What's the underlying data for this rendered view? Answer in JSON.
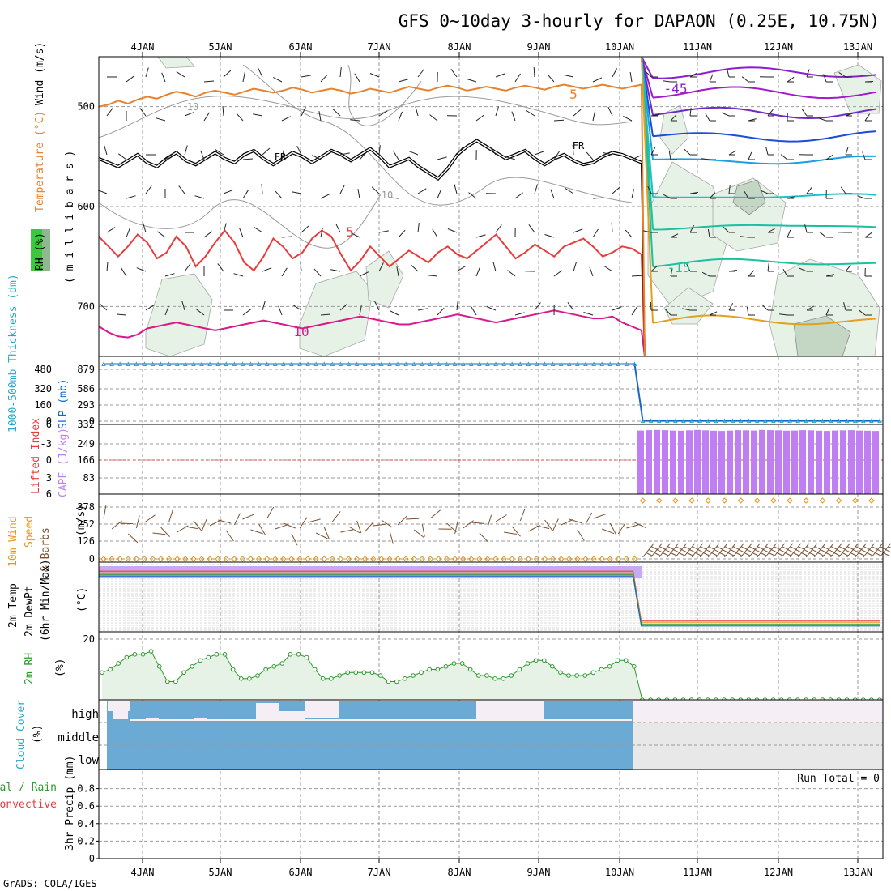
{
  "title": "GFS 0~10day 3-hourly for DAPAON (0.25E, 10.75N)",
  "footer": "GrADS: COLA/IGES",
  "dates": [
    "4JAN",
    "5JAN",
    "6JAN",
    "7JAN",
    "8JAN",
    "9JAN",
    "10JAN",
    "11JAN",
    "12JAN",
    "13JAN"
  ],
  "colors": {
    "grid": "#9a9a9a",
    "rh_fill": "#e6f2e6",
    "rh_fill_dark": "#c4d6c4",
    "t10": "#d9188c",
    "t5": "#e83c3c",
    "tm5": "#e8822c",
    "thick": "#28a8c8",
    "slp": "#1866c8",
    "cape": "#bf7ff2",
    "wind10": "#e6961e",
    "barb": "#7a5030",
    "rh2m": "#2a9a2a",
    "cloud": "#6aaad4",
    "cloud_high": "#f5eef5",
    "cloud_gray": "#e8e8e8",
    "precip_total": "#2a9a2a",
    "precip_conv": "#e83c3c"
  },
  "chart_data": [
    {
      "panel": "upper-air",
      "type": "area",
      "ylabel_parts": [
        "RH (%)",
        "Temperature (°C)",
        "Wind (m/s)"
      ],
      "ylabel_units": "( m i l l i b a r s )",
      "yticks": [
        "500",
        "600",
        "700"
      ],
      "ylim": [
        450,
        750
      ],
      "contour_labels": [
        {
          "text": "5",
          "value": 5
        },
        {
          "text": "FR",
          "value": 0
        },
        {
          "text": "5",
          "value": 5
        },
        {
          "text": "10",
          "value": 10
        },
        {
          "text": "10",
          "value": 10
        },
        {
          "text": "10",
          "value": 10
        },
        {
          "text": "FR",
          "value": 0
        },
        {
          "text": "-45",
          "value": -45
        },
        {
          "text": "-15",
          "value": -15
        }
      ],
      "series": [
        {
          "name": "10",
          "values": [
            720,
            726,
            730,
            731,
            728,
            722,
            720,
            718,
            716,
            718,
            720,
            722,
            724,
            722,
            720,
            718,
            716,
            714,
            716,
            718,
            720,
            722,
            720,
            718,
            716,
            714,
            712,
            710,
            712,
            714,
            716,
            718,
            718,
            716,
            714,
            712,
            710,
            708,
            710,
            712,
            714,
            716,
            714,
            712,
            710,
            708,
            706,
            704,
            706,
            708,
            710,
            712,
            712,
            710,
            716,
            720,
            724
          ]
        },
        {
          "name": "5",
          "values": [
            630,
            640,
            650,
            640,
            628,
            636,
            652,
            646,
            630,
            640,
            660,
            650,
            636,
            624,
            636,
            656,
            664,
            650,
            632,
            640,
            652,
            646,
            632,
            624,
            630,
            648,
            664,
            654,
            640,
            650,
            660,
            652,
            644,
            650,
            656,
            646,
            640,
            648,
            652,
            644,
            636,
            628,
            640,
            652,
            646,
            638,
            644,
            650,
            640,
            636,
            632,
            640,
            650,
            646,
            640,
            642,
            648
          ]
        },
        {
          "name": "FR",
          "values": [
            552,
            556,
            560,
            554,
            548,
            556,
            560,
            552,
            546,
            554,
            558,
            552,
            546,
            552,
            556,
            548,
            544,
            552,
            558,
            552,
            546,
            550,
            556,
            550,
            544,
            548,
            554,
            548,
            542,
            550,
            560,
            556,
            552,
            560,
            566,
            572,
            562,
            548,
            540,
            534,
            540,
            546,
            552,
            548,
            544,
            552,
            558,
            552,
            548,
            554,
            558,
            556,
            550,
            546,
            548,
            552,
            556
          ]
        },
        {
          "name": "-5",
          "values": [
            500,
            498,
            494,
            497,
            493,
            490,
            492,
            488,
            485,
            487,
            490,
            486,
            484,
            486,
            488,
            485,
            482,
            484,
            486,
            484,
            481,
            483,
            486,
            484,
            482,
            484,
            487,
            485,
            482,
            484,
            486,
            483,
            480,
            482,
            484,
            481,
            479,
            481,
            484,
            482,
            480,
            482,
            484,
            481,
            479,
            481,
            483,
            480,
            478,
            480,
            482,
            480,
            478,
            480,
            482,
            480,
            478
          ]
        }
      ],
      "after_break_levels": [
        {
          "value": -45,
          "p": 466
        },
        {
          "value": -40,
          "p": 486
        },
        {
          "value": -35,
          "p": 506
        },
        {
          "value": -30,
          "p": 530
        },
        {
          "value": -25,
          "p": 554
        },
        {
          "value": -20,
          "p": 590
        },
        {
          "value": -15,
          "p": 620
        },
        {
          "value": -15,
          "p": 656
        },
        {
          "value": -10,
          "p": 714
        }
      ]
    },
    {
      "panel": "thickness-slp",
      "type": "line",
      "ylabel_left": "1000-500mb Thickness (dm)",
      "ylabel_right": "SLP (mb)",
      "yticks_left": [
        "480",
        "320",
        "160",
        "0"
      ],
      "yticks_right": [
        "879",
        "586",
        "293",
        "0"
      ],
      "ylim": [
        0,
        1050
      ],
      "series": [
        {
          "name": "SLP (mb)",
          "values": [
            1000,
            1000,
            1000,
            1000,
            1000,
            1000,
            1000,
            1000,
            1000,
            1000,
            1000,
            1000,
            1000,
            1000,
            1000,
            1000,
            1000,
            1000,
            1000,
            1000,
            1000,
            1000,
            1000,
            1000,
            1000,
            1000,
            1000,
            1000,
            1000,
            1000,
            1000,
            1000,
            1000,
            1000,
            1000,
            1000,
            1000,
            1000,
            1000,
            1000,
            1000,
            1000,
            1000,
            1000,
            1000,
            1000,
            1000,
            1000,
            1000,
            1000,
            1000,
            1000,
            1000,
            1000,
            1000,
            1000,
            1000,
            1000,
            1000,
            1000,
            1000,
            1000,
            1000,
            1000,
            1000,
            1000,
            5,
            5,
            5,
            5,
            5,
            5,
            5,
            5,
            5,
            5,
            5,
            5,
            5,
            5,
            5,
            5,
            5,
            5,
            5,
            5,
            5,
            5,
            5,
            5,
            5,
            5,
            5,
            5,
            5,
            5
          ]
        }
      ]
    },
    {
      "panel": "lifted-cape",
      "type": "bar",
      "ylabel_left": "Lifted Index",
      "ylabel_right": "CAPE (J/kg)",
      "yticks_left": [
        "6",
        "-3",
        "0",
        "3",
        "6"
      ],
      "yticks_right": [
        "332",
        "249",
        "166",
        "83"
      ],
      "ylim": [
        0,
        332
      ],
      "series": [
        {
          "name": "CAPE (J/kg)",
          "values": [
            310,
            312,
            313,
            312,
            310,
            309,
            311,
            313,
            311,
            309,
            308,
            310,
            312,
            311,
            310,
            313,
            312,
            311,
            309,
            310,
            312,
            311,
            309,
            308,
            310,
            311,
            312,
            310,
            309,
            308
          ]
        }
      ]
    },
    {
      "panel": "10m-wind",
      "type": "scatter",
      "ylabel": "10m Wind Speed & Barbs (m/s)",
      "yticks": [
        "378",
        "252",
        "126",
        "0"
      ],
      "ylim": [
        0,
        420
      ],
      "series": [
        {
          "name": "Speed",
          "values": [
            0,
            0,
            0,
            0,
            0,
            0,
            0,
            0,
            0,
            0,
            0,
            0,
            0,
            0,
            0,
            0,
            0,
            0,
            0,
            0,
            0,
            0,
            0,
            0,
            0,
            0,
            0,
            0,
            0,
            0,
            0,
            0,
            0,
            0,
            0,
            0,
            0,
            0,
            0,
            0,
            0,
            0,
            0,
            0,
            0,
            0,
            0,
            0,
            0,
            0,
            0,
            0,
            0,
            0,
            0,
            0,
            0,
            0,
            0,
            0,
            0,
            0,
            0,
            0,
            0,
            0,
            0,
            0,
            0,
            0,
            0,
            0,
            0,
            0,
            0,
            0,
            0,
            0,
            0,
            0,
            0,
            0,
            0,
            0,
            0,
            0,
            0,
            0,
            0,
            0,
            0,
            0,
            0,
            0,
            0,
            0
          ]
        }
      ]
    },
    {
      "panel": "2m-temp",
      "type": "line",
      "ylabel": "2m Temp 2m DewPt (6hr Min/Max) (°C)",
      "ylim": [
        -100,
        10
      ],
      "series": [
        {
          "name": "Temp",
          "values": [
            2,
            2,
            2,
            2,
            2,
            2,
            2,
            2,
            2,
            2,
            2,
            2,
            2,
            2,
            2,
            2,
            2,
            2,
            2,
            2,
            2,
            2,
            2,
            2,
            2,
            2,
            2,
            2,
            2,
            2,
            2,
            2,
            2,
            2,
            2,
            2,
            2,
            2,
            2,
            2,
            2,
            2,
            2,
            2,
            2,
            2,
            2,
            2,
            2,
            2,
            2,
            2,
            2,
            2,
            2,
            2,
            2,
            2,
            2,
            2,
            2,
            2,
            2,
            2,
            2,
            2,
            -92,
            -92,
            -92,
            -92,
            -92,
            -92,
            -92,
            -92,
            -92,
            -92,
            -92,
            -92,
            -92,
            -92,
            -92,
            -92,
            -92,
            -92,
            -92,
            -92,
            -92,
            -92,
            -92,
            -92,
            -92,
            -92,
            -92,
            -92,
            -92,
            -92
          ]
        }
      ]
    },
    {
      "panel": "2m-rh",
      "type": "area",
      "ylabel": "2m RH (%)",
      "yticks": [
        "20"
      ],
      "ylim": [
        0,
        20
      ],
      "series": [
        {
          "name": "2m RH",
          "values": [
            9,
            10,
            12,
            14,
            15,
            15,
            16,
            11,
            6,
            6,
            9,
            11,
            13,
            14,
            15,
            15,
            10,
            7,
            7,
            8,
            10,
            11,
            12,
            15,
            15,
            14,
            10,
            7,
            7,
            8,
            9,
            9,
            9,
            9,
            8,
            6,
            6,
            7,
            8,
            9,
            10,
            10,
            11,
            12,
            12,
            10,
            8,
            8,
            7,
            7,
            8,
            10,
            12,
            13,
            13,
            11,
            9,
            8,
            8,
            8,
            9,
            10,
            11,
            13,
            13,
            11,
            0,
            0,
            0,
            0,
            0,
            0,
            0,
            0,
            0,
            0,
            0,
            0,
            0,
            0,
            0,
            0,
            0,
            0,
            0,
            0,
            0,
            0,
            0,
            0,
            0,
            0,
            0,
            0,
            0,
            0
          ]
        }
      ]
    },
    {
      "panel": "cloud-cover",
      "type": "area",
      "ylabel": "Cloud Cover (%)",
      "level_labels": [
        "high",
        "middle",
        "low"
      ]
    },
    {
      "panel": "precip",
      "type": "bar",
      "ylabel_legend": [
        "Total / Rain",
        "Convective"
      ],
      "ylabel": "3hr Precip (mm)",
      "run_total": "Run Total = 0",
      "yticks": [
        "0.8",
        "0.6",
        "0.4",
        "0.2",
        "0"
      ],
      "ylim": [
        0,
        1
      ],
      "series": [
        {
          "name": "Total / Rain",
          "values": []
        }
      ]
    }
  ]
}
